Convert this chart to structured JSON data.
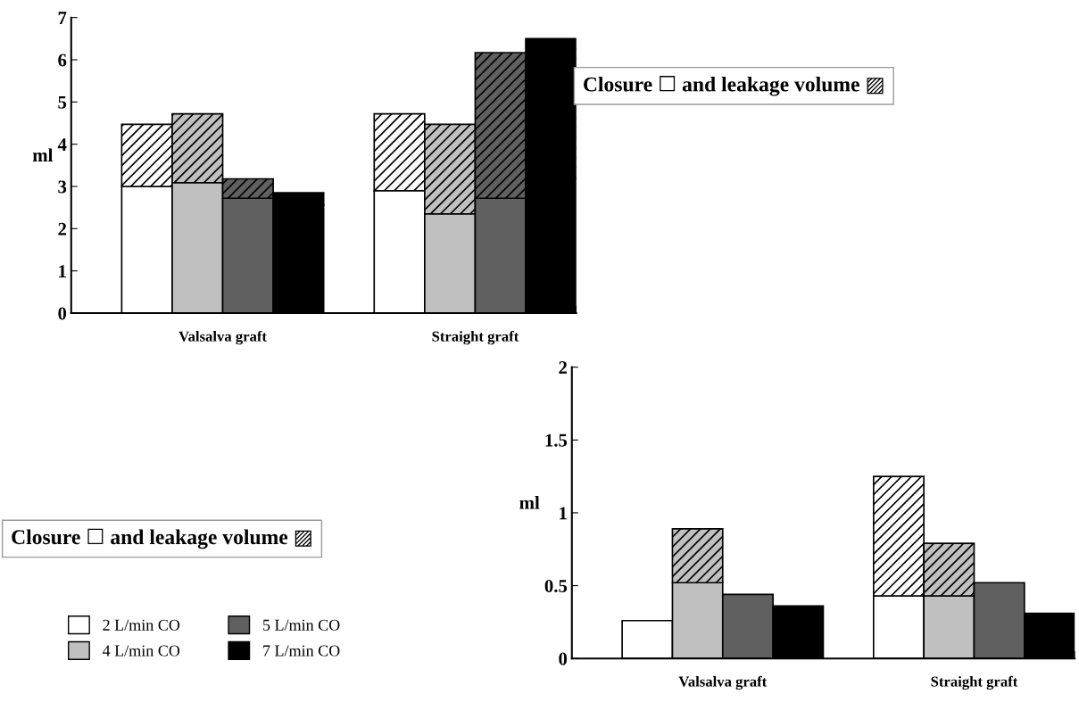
{
  "chart_data": [
    {
      "type": "bar",
      "stacked": true,
      "title": "Closure ☐ and leakage volume ▨",
      "ylabel": "ml",
      "annotations": [
        "Valsalva graft",
        "Straight graft"
      ],
      "categories": [
        null,
        null,
        null,
        null,
        null,
        null,
        null,
        null,
        null,
        null
      ],
      "ylim": [
        0,
        7
      ],
      "yticks": [
        0,
        1,
        2,
        3,
        4,
        5,
        6,
        7
      ],
      "grid": false,
      "legend": false,
      "series": [
        {
          "color": "#ffffff",
          "values": [
            null,
            3.0,
            null,
            null,
            null,
            null,
            2.9,
            null,
            null,
            null
          ]
        },
        {
          "color": "#ffffff",
          "values": [
            null,
            1.47,
            null,
            null,
            null,
            null,
            1.82,
            null,
            null,
            null
          ]
        },
        {
          "color": "#c0c0c0",
          "values": [
            null,
            null,
            3.09,
            null,
            null,
            null,
            null,
            2.35,
            null,
            null
          ]
        },
        {
          "color": "#c0c0c0",
          "values": [
            null,
            null,
            1.63,
            null,
            null,
            null,
            null,
            2.12,
            null,
            null
          ]
        },
        {
          "color": "#606060",
          "values": [
            null,
            null,
            null,
            2.72,
            null,
            null,
            null,
            null,
            2.72,
            null
          ]
        },
        {
          "color": "#606060",
          "values": [
            null,
            null,
            null,
            0.46,
            null,
            null,
            null,
            null,
            3.45,
            null
          ]
        },
        {
          "color": "#000000",
          "values": [
            null,
            null,
            null,
            null,
            2.56,
            null,
            null,
            null,
            null,
            3.18
          ]
        },
        {
          "color": "#000000",
          "values": [
            null,
            null,
            null,
            null,
            0.29,
            null,
            null,
            null,
            null,
            3.32
          ]
        }
      ]
    },
    {
      "type": "bar",
      "stacked": true,
      "ylabel": "ml",
      "annotations": [
        "Valsalva graft",
        "Straight graft",
        "Closure ☐ and leakage volume ▨"
      ],
      "categories": [
        null,
        null,
        null,
        null,
        null,
        null,
        null,
        null,
        null,
        null
      ],
      "ylim": [
        0,
        2
      ],
      "yticks": [
        0,
        0.5,
        1,
        1.5,
        2
      ],
      "grid": false,
      "legend": "bottom left",
      "series": [
        {
          "name": "2 L/min CO",
          "color": "#ffffff",
          "values": [
            null,
            0.26,
            null,
            null,
            null,
            null,
            0.43,
            null,
            null,
            null
          ]
        },
        {
          "color": "#ffffff",
          "values": [
            null,
            null,
            null,
            null,
            null,
            null,
            0.82,
            null,
            null,
            null
          ]
        },
        {
          "name": "4 L/min CO",
          "color": "#c0c0c0",
          "values": [
            null,
            null,
            0.52,
            null,
            null,
            null,
            null,
            0.43,
            null,
            null
          ]
        },
        {
          "color": "#c0c0c0",
          "values": [
            null,
            null,
            0.37,
            null,
            null,
            null,
            null,
            0.36,
            null,
            null
          ]
        },
        {
          "name": "5 L/min CO",
          "color": "#606060",
          "values": [
            null,
            null,
            null,
            0.44,
            null,
            null,
            null,
            null,
            0.52,
            null
          ]
        },
        {
          "name": "7 L/min CO",
          "color": "#000000",
          "values": [
            null,
            null,
            null,
            null,
            0.36,
            null,
            null,
            null,
            null,
            0.31
          ]
        }
      ]
    }
  ]
}
